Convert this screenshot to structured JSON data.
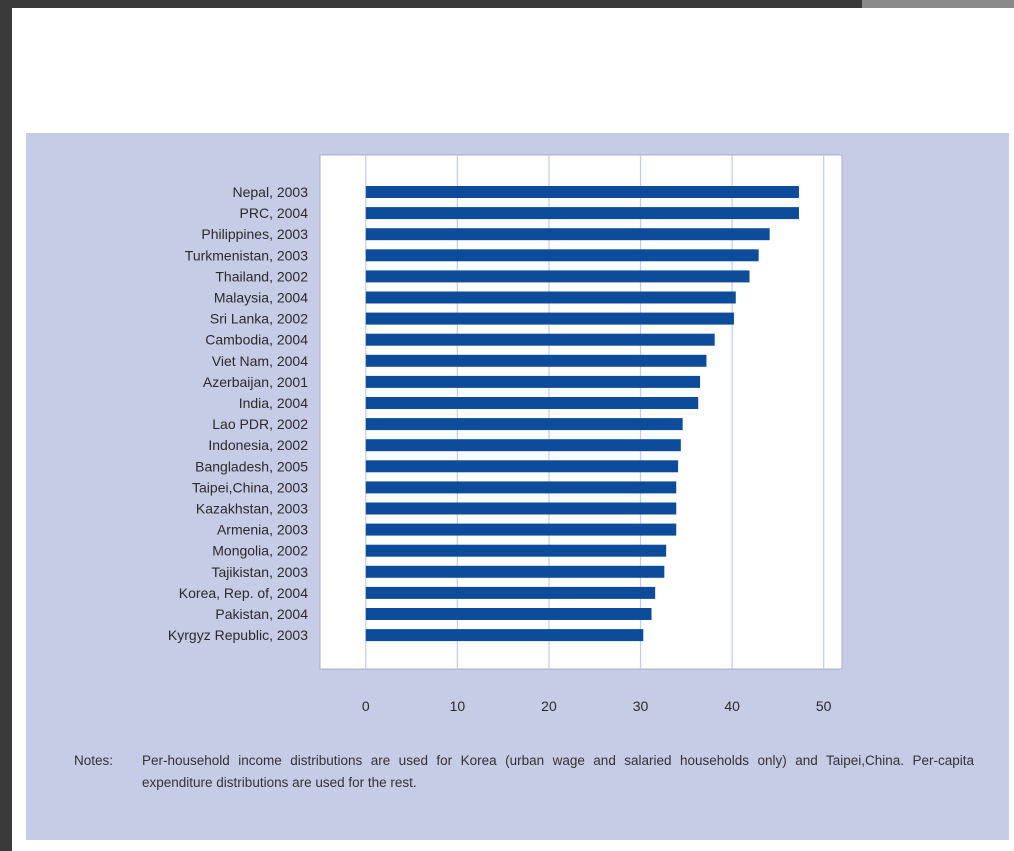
{
  "chart_data": {
    "type": "bar",
    "orientation": "horizontal",
    "categories": [
      "Nepal, 2003",
      "PRC, 2004",
      "Philippines, 2003",
      "Turkmenistan, 2003",
      "Thailand, 2002",
      "Malaysia, 2004",
      "Sri Lanka, 2002",
      "Cambodia, 2004",
      "Viet Nam, 2004",
      "Azerbaijan, 2001",
      "India, 2004",
      "Lao PDR, 2002",
      "Indonesia, 2002",
      "Bangladesh, 2005",
      "Taipei,China, 2003",
      "Kazakhstan, 2003",
      "Armenia, 2003",
      "Mongolia, 2002",
      "Tajikistan, 2003",
      "Korea, Rep. of, 2004",
      "Pakistan, 2004",
      "Kyrgyz Republic, 2003"
    ],
    "values": [
      47.3,
      47.3,
      44.1,
      42.9,
      41.9,
      40.4,
      40.2,
      38.1,
      37.2,
      36.5,
      36.3,
      34.6,
      34.4,
      34.1,
      33.9,
      33.9,
      33.9,
      32.8,
      32.6,
      31.6,
      31.2,
      30.3
    ],
    "xlim": [
      -5,
      52
    ],
    "xticks": [
      0,
      10,
      20,
      30,
      40,
      50
    ],
    "grid": true,
    "bar_color": "#0d4c9b",
    "title": "",
    "xlabel": "",
    "ylabel": ""
  },
  "notes": {
    "label": "Notes:",
    "text": "Per-household income distributions are used for Korea (urban wage and salaried households only) and Taipei,China. Per-capita expenditure distributions are used for the rest."
  },
  "colors": {
    "panel": "#c6cbe6",
    "plot_bg": "#ffffff",
    "grid": "#c6cbe6"
  }
}
